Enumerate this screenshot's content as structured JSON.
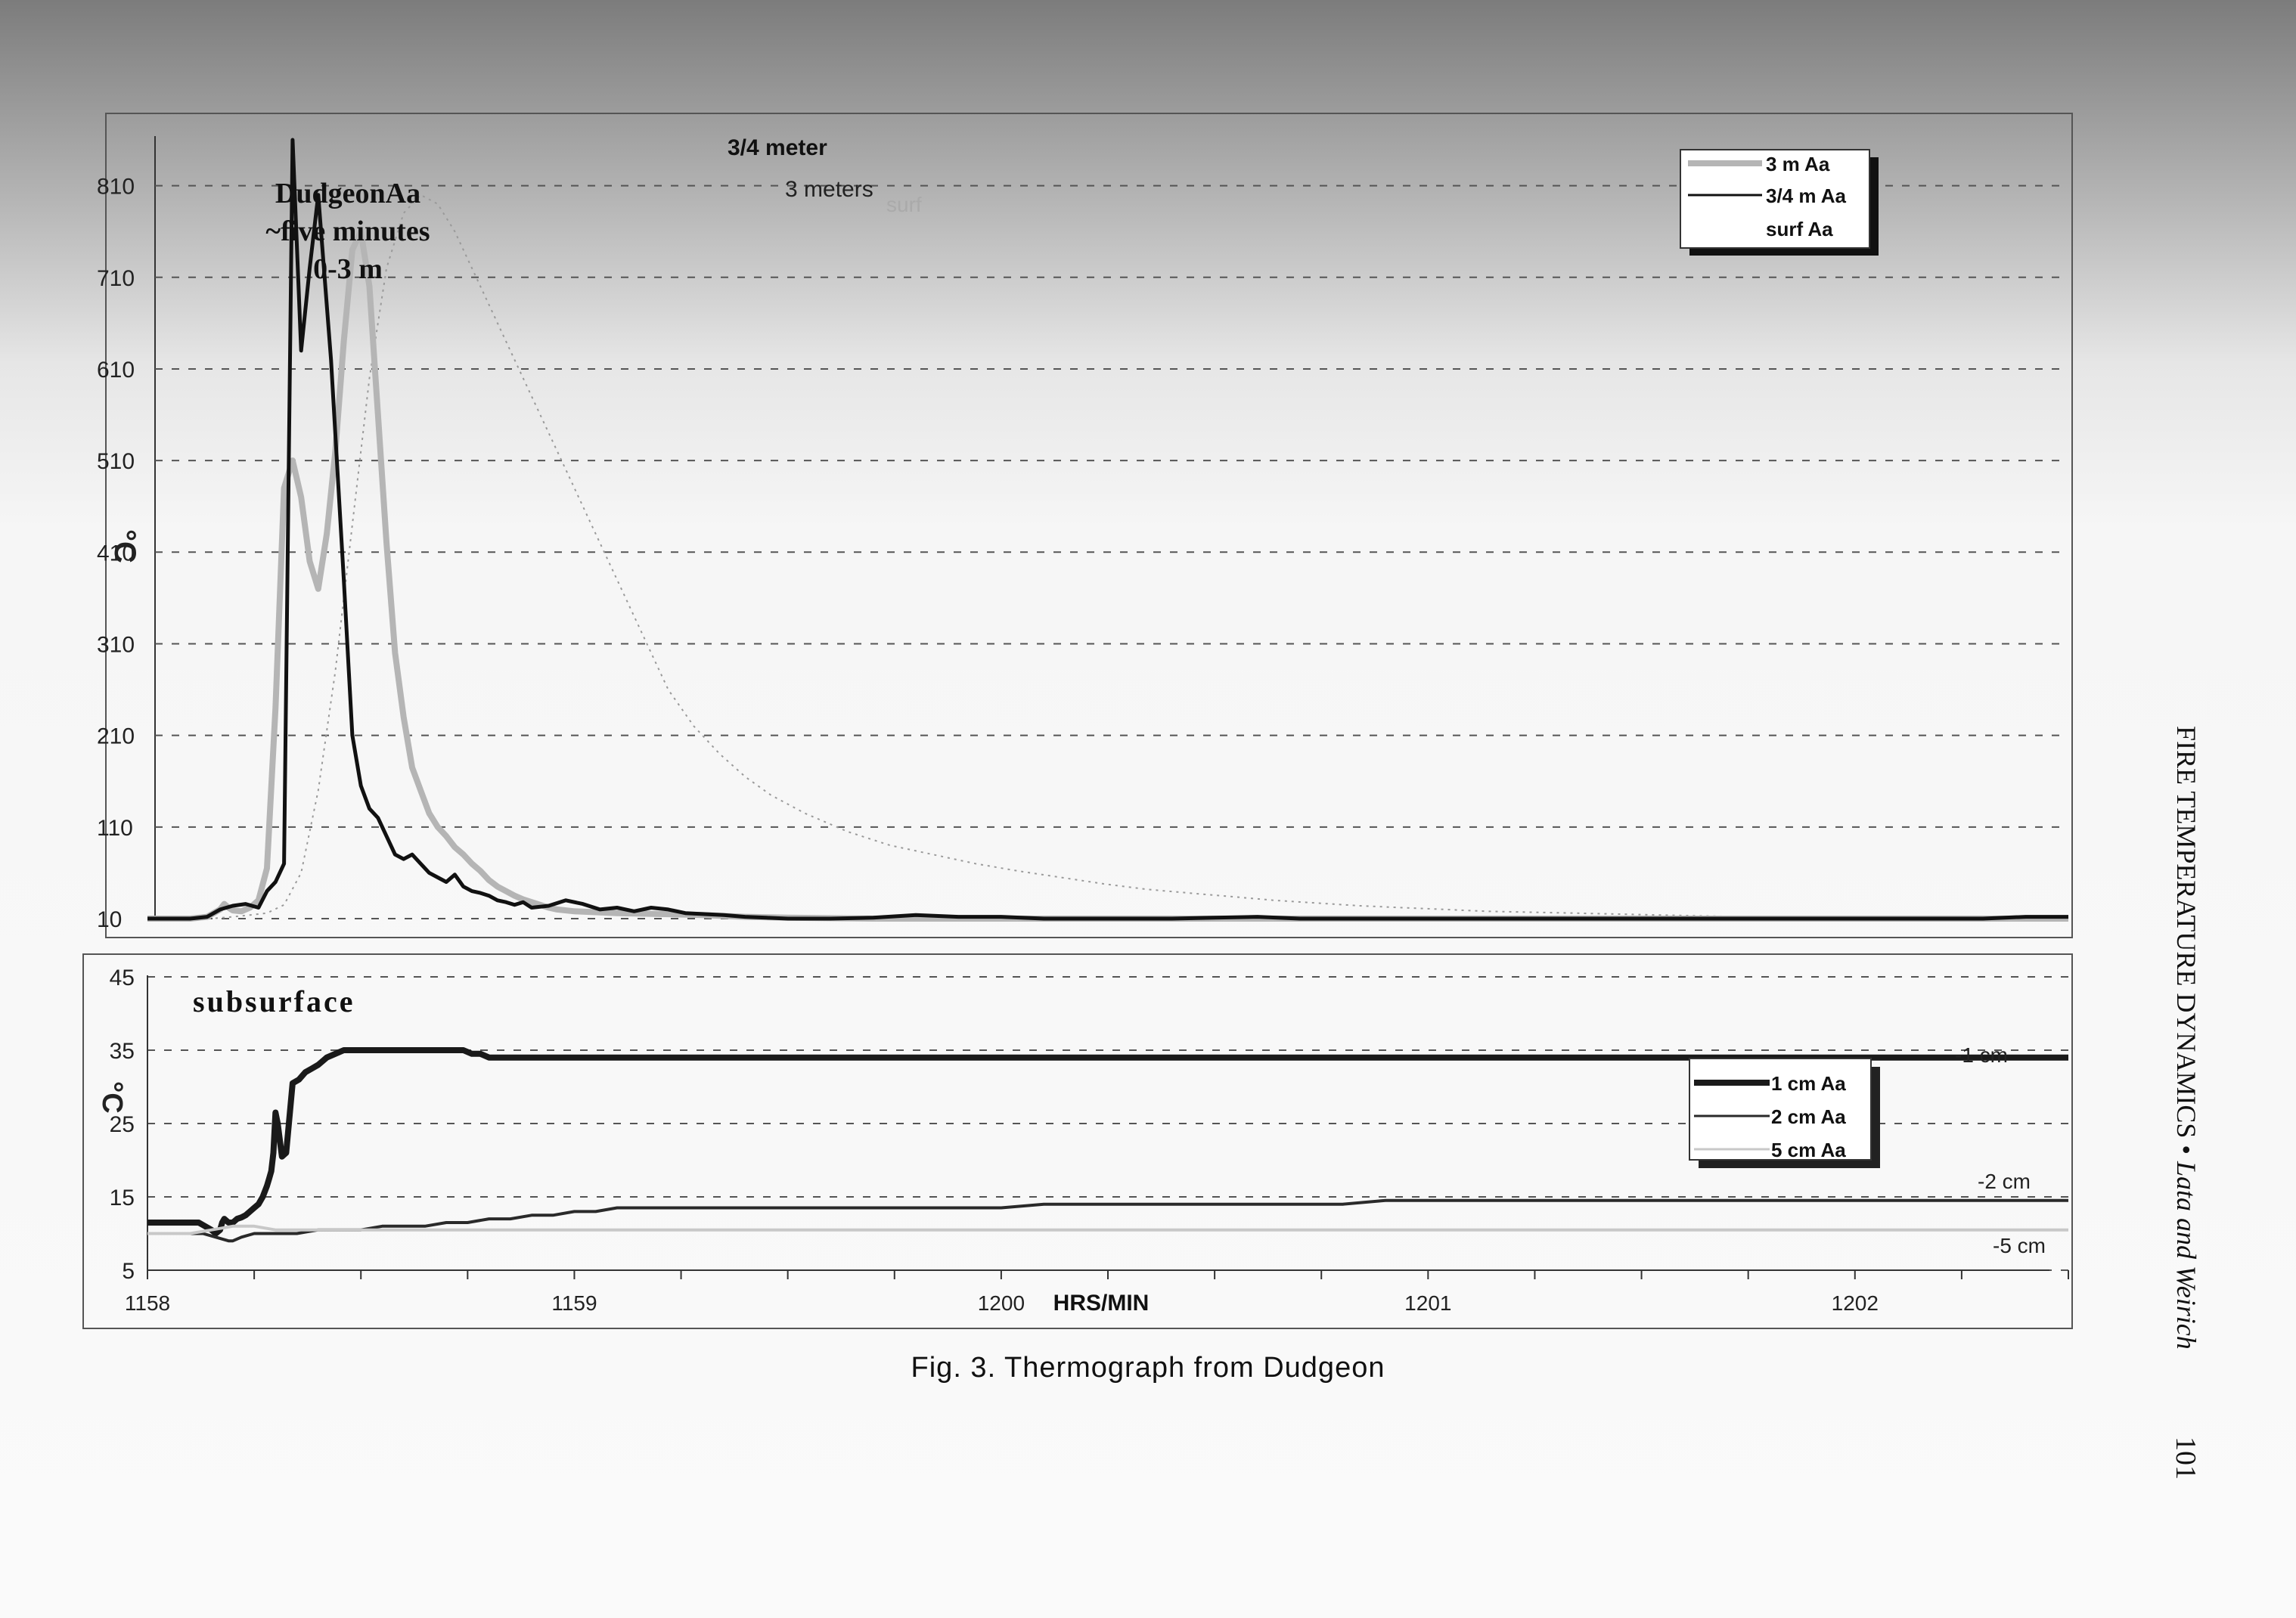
{
  "chart_data": [
    {
      "type": "line",
      "panel": "upper",
      "title_lines": [
        "DudgeonAa",
        "~five minutes",
        "0-3 m"
      ],
      "ylabel": "°C",
      "ylim": [
        10,
        860
      ],
      "yticks": [
        10,
        110,
        210,
        310,
        410,
        510,
        610,
        710,
        810
      ],
      "x_range": [
        1158.0,
        1203.0
      ],
      "grid": true,
      "legend_position": "top-right",
      "legend": [
        "3 m Aa",
        "3/4 m Aa",
        "surf Aa"
      ],
      "annotations": {
        "peak_34": "3/4 meter",
        "peak_3": "3 meters",
        "surf": "surf"
      },
      "series": [
        {
          "name": "3 m Aa",
          "color": "#b5b5b5",
          "x": [
            1158.0,
            1159.0,
            1159.4,
            1159.7,
            1159.8,
            1159.9,
            1160.0,
            1160.2,
            1160.4,
            1160.6,
            1160.8,
            1161.0,
            1161.2,
            1161.4,
            1161.6,
            1161.8,
            1162.0,
            1162.2,
            1162.4,
            1162.6,
            1162.8,
            1163.0,
            1163.2,
            1163.4,
            1163.6,
            1163.8,
            1164.0,
            1164.2,
            1164.4,
            1164.6,
            1164.8,
            1165.0,
            1165.2,
            1165.4,
            1165.6,
            1165.8,
            1166.0,
            1166.2,
            1166.4,
            1166.6,
            1166.8,
            1167.0,
            1167.2,
            1167.4,
            1167.6,
            1168.0,
            1169.0,
            1170.0,
            1171.0,
            1172.0,
            1173.0,
            1175.0,
            1180.0,
            1185.0,
            1190.0,
            1195.0,
            1200.0,
            1203.0
          ],
          "y": [
            10,
            10,
            12,
            20,
            26,
            22,
            19,
            18,
            22,
            30,
            65,
            240,
            480,
            510,
            470,
            400,
            370,
            430,
            520,
            640,
            740,
            760,
            700,
            560,
            420,
            300,
            230,
            175,
            150,
            125,
            110,
            100,
            88,
            80,
            70,
            62,
            52,
            45,
            40,
            35,
            31,
            28,
            25,
            22,
            20,
            18,
            16,
            15,
            14,
            12,
            11,
            10,
            10,
            10,
            10,
            10,
            10,
            10
          ]
        },
        {
          "name": "3/4 m Aa",
          "color": "#111111",
          "x": [
            1158.0,
            1159.0,
            1159.4,
            1159.7,
            1160.0,
            1160.3,
            1160.6,
            1160.8,
            1161.0,
            1161.2,
            1161.4,
            1161.6,
            1161.8,
            1162.0,
            1162.3,
            1162.6,
            1162.8,
            1163.0,
            1163.2,
            1163.4,
            1163.6,
            1163.8,
            1164.0,
            1164.2,
            1164.4,
            1164.6,
            1164.8,
            1165.0,
            1165.2,
            1165.4,
            1165.6,
            1165.8,
            1166.0,
            1166.2,
            1166.4,
            1166.6,
            1166.8,
            1167.0,
            1167.4,
            1167.8,
            1168.2,
            1168.6,
            1169.0,
            1169.4,
            1169.8,
            1170.2,
            1170.6,
            1171.0,
            1171.5,
            1172.0,
            1172.5,
            1173.0,
            1174.0,
            1175.0,
            1176.0,
            1177.0,
            1178.0,
            1179.0,
            1180.0,
            1181.0,
            1182.0,
            1183.0,
            1184.0,
            1185.0,
            1186.0,
            1187.0,
            1188.0,
            1189.0,
            1190.0,
            1191.0,
            1192.0,
            1193.0,
            1194.0,
            1195.0,
            1196.0,
            1197.0,
            1198.0,
            1199.0,
            1200.0,
            1201.0,
            1202.0,
            1203.0
          ],
          "y": [
            10,
            10,
            12,
            20,
            24,
            26,
            22,
            40,
            50,
            70,
            860,
            630,
            720,
            800,
            620,
            380,
            210,
            155,
            130,
            120,
            100,
            80,
            75,
            80,
            70,
            60,
            55,
            50,
            58,
            45,
            40,
            38,
            35,
            30,
            28,
            25,
            28,
            22,
            24,
            30,
            26,
            20,
            22,
            18,
            22,
            20,
            16,
            15,
            14,
            12,
            11,
            10,
            10,
            11,
            14,
            12,
            12,
            10,
            10,
            10,
            10,
            11,
            12,
            10,
            10,
            10,
            10,
            10,
            10,
            10,
            10,
            10,
            10,
            10,
            10,
            10,
            10,
            10,
            10,
            10,
            12,
            12
          ]
        },
        {
          "name": "surf Aa",
          "color": "#9a9a9a",
          "x": [
            1158.0,
            1159.5,
            1160.0,
            1160.4,
            1160.8,
            1161.2,
            1161.6,
            1162.0,
            1162.4,
            1162.8,
            1163.2,
            1163.6,
            1164.0,
            1164.4,
            1164.8,
            1165.2,
            1165.6,
            1166.0,
            1166.6,
            1167.2,
            1167.8,
            1168.4,
            1169.0,
            1169.6,
            1170.2,
            1170.8,
            1171.4,
            1172.0,
            1172.6,
            1173.4,
            1174.4,
            1175.4,
            1176.4,
            1177.4,
            1178.4,
            1179.4,
            1180.4,
            1181.4,
            1182.4,
            1183.4,
            1184.4,
            1185.4,
            1186.4,
            1187.4,
            1188.4,
            1189.4,
            1190.4,
            1191.4,
            1192.4,
            1193.4,
            1194.4,
            1195.4,
            1196.4,
            1197.4,
            1198.4,
            1199.4,
            1200.4,
            1201.4,
            1202.4,
            1203.0
          ],
          "y": [
            10,
            10,
            12,
            14,
            16,
            25,
            60,
            150,
            280,
            440,
            600,
            720,
            780,
            800,
            790,
            760,
            720,
            680,
            620,
            560,
            500,
            440,
            380,
            320,
            260,
            220,
            190,
            165,
            145,
            125,
            105,
            90,
            80,
            70,
            62,
            55,
            48,
            42,
            38,
            34,
            30,
            27,
            24,
            22,
            20,
            18,
            17,
            16,
            15,
            14,
            13,
            12,
            12,
            11,
            11,
            10,
            10,
            10,
            10,
            10
          ]
        }
      ]
    },
    {
      "type": "line",
      "panel": "lower",
      "title": "subsurface",
      "ylabel": "°C",
      "ylim": [
        5,
        45
      ],
      "yticks": [
        5,
        15,
        25,
        35,
        45
      ],
      "xlabel": "HRS/MIN",
      "xticks": [
        1158,
        1159,
        1200,
        1201,
        1202
      ],
      "x_range": [
        1158.0,
        1203.0
      ],
      "grid": true,
      "legend_position": "right",
      "legend": [
        "1 cm Aa",
        "2 cm Aa",
        "5 cm Aa"
      ],
      "end_labels": [
        "-1 cm",
        "-2 cm",
        "-5 cm"
      ],
      "series": [
        {
          "name": "1 cm Aa",
          "color": "#1a1a1a",
          "x": [
            1158.0,
            1159.2,
            1159.35,
            1159.5,
            1159.6,
            1159.7,
            1159.75,
            1159.8,
            1159.9,
            1160.0,
            1160.1,
            1160.2,
            1160.3,
            1160.4,
            1160.5,
            1160.6,
            1160.7,
            1160.8,
            1160.85,
            1160.9,
            1160.95,
            1161.0,
            1161.05,
            1161.15,
            1161.25,
            1161.4,
            1161.55,
            1161.7,
            1161.85,
            1162.0,
            1162.2,
            1162.4,
            1162.6,
            1162.8,
            1163.0,
            1163.2,
            1163.4,
            1163.6,
            1163.8,
            1164.0,
            1164.2,
            1164.4,
            1164.6,
            1164.8,
            1165.0,
            1165.2,
            1165.4,
            1165.6,
            1165.8,
            1166.0,
            1166.2,
            1166.4,
            1166.6,
            1166.8,
            1167.0,
            1167.2,
            1167.4,
            1167.6,
            1167.8,
            1168.0,
            1168.2,
            1168.4,
            1168.6,
            1168.8,
            1169.0,
            1170.0,
            1171.0,
            1172.0,
            1173.0,
            1174.0,
            1175.0,
            1176.0,
            1177.0,
            1178.0,
            1179.0,
            1180.0,
            1181.0,
            1182.0,
            1183.0,
            1184.0,
            1185.0,
            1186.0,
            1187.0,
            1188.0,
            1189.0,
            1190.0,
            1191.0,
            1192.0,
            1193.0,
            1194.0,
            1195.0,
            1196.0,
            1197.0,
            1198.0,
            1199.0,
            1200.0,
            1201.0,
            1202.0,
            1203.0
          ],
          "y": [
            11.5,
            11.5,
            11,
            10.5,
            10,
            10.5,
            11.5,
            12,
            11.5,
            11.5,
            12,
            12.2,
            12.5,
            13,
            13.5,
            14,
            15,
            16.5,
            17.5,
            18.5,
            21,
            26.5,
            25,
            20.5,
            21,
            30.5,
            31,
            32,
            32.5,
            33,
            34,
            34.5,
            35,
            35,
            35,
            35,
            35,
            35,
            35,
            35,
            35,
            35,
            35,
            35,
            35,
            35,
            35,
            34.5,
            34.5,
            34,
            34,
            34,
            34,
            34,
            34,
            34,
            34,
            34,
            34,
            34,
            34,
            34,
            34,
            34,
            34,
            34,
            34,
            34,
            34,
            34,
            34,
            34,
            34,
            34,
            34,
            34,
            34,
            34,
            34,
            34,
            34,
            34,
            34,
            34,
            34,
            34,
            34,
            34,
            34,
            34,
            34,
            34,
            34,
            34,
            34,
            34,
            34,
            34,
            34
          ]
        },
        {
          "name": "2 cm Aa",
          "color": "#2a2a2a",
          "x": [
            1158.0,
            1159.3,
            1159.6,
            1159.9,
            1160.0,
            1160.2,
            1160.5,
            1160.8,
            1161.0,
            1161.5,
            1162.0,
            1162.5,
            1163.0,
            1163.5,
            1164.0,
            1164.5,
            1165.0,
            1165.5,
            1166.0,
            1166.5,
            1167.0,
            1167.5,
            1168.0,
            1168.5,
            1169.0,
            1170.0,
            1171.0,
            1172.0,
            1173.0,
            1174.0,
            1175.0,
            1176.0,
            1177.0,
            1178.0,
            1179.0,
            1180.0,
            1181.0,
            1182.0,
            1183.0,
            1184.0,
            1185.0,
            1186.0,
            1187.0,
            1188.0,
            1189.0,
            1190.0,
            1191.0,
            1192.0,
            1193.0,
            1194.0,
            1195.0,
            1196.0,
            1197.0,
            1198.0,
            1199.0,
            1200.0,
            1201.0,
            1202.0,
            1203.0
          ],
          "y": [
            10,
            10,
            9.5,
            9,
            9,
            9.5,
            10,
            10,
            10,
            10,
            10.5,
            10.5,
            10.5,
            11,
            11,
            11,
            11.5,
            11.5,
            12,
            12,
            12.5,
            12.5,
            13,
            13,
            13.5,
            13.5,
            13.5,
            13.5,
            13.5,
            13.5,
            13.5,
            13.5,
            13.5,
            13.5,
            14,
            14,
            14,
            14,
            14,
            14,
            14,
            14,
            14.5,
            14.5,
            14.5,
            14.5,
            14.5,
            14.5,
            14.5,
            14.5,
            14.5,
            14.5,
            14.5,
            14.5,
            14.5,
            14.5,
            14.5,
            14.5,
            14.5
          ]
        },
        {
          "name": "5 cm Aa",
          "color": "#c8c8c8",
          "x": [
            1158.0,
            1159.0,
            1159.5,
            1160.0,
            1160.5,
            1161.0,
            1161.5,
            1162.0,
            1163.0,
            1164.0,
            1165.0,
            1166.0,
            1167.0,
            1168.0,
            1169.0,
            1170.0,
            1172.0,
            1174.0,
            1176.0,
            1178.0,
            1180.0,
            1185.0,
            1190.0,
            1195.0,
            1200.0,
            1203.0
          ],
          "y": [
            10,
            10,
            10.5,
            11,
            11,
            10.5,
            10.5,
            10.5,
            10.5,
            10.5,
            10.5,
            10.5,
            10.5,
            10.5,
            10.5,
            10.5,
            10.5,
            10.5,
            10.5,
            10.5,
            10.5,
            10.5,
            10.5,
            10.5,
            10.5,
            10.5
          ]
        }
      ]
    }
  ],
  "figure": {
    "caption": "Fig. 3.  Thermograph from Dudgeon",
    "running_head": "FIRE TEMPERATURE DYNAMICS",
    "running_head_sep": " • ",
    "running_head_authors": "Lata and Weirich",
    "page_number": "101"
  }
}
